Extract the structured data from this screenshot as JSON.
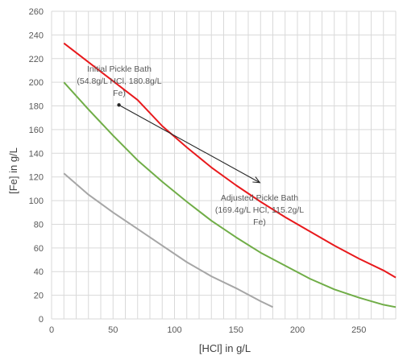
{
  "chart_data": {
    "type": "line",
    "title": "",
    "xlabel": "[HCl] in g/L",
    "ylabel": "[Fe] in g/L",
    "xlim": [
      0,
      280
    ],
    "ylim": [
      0,
      260
    ],
    "xticks": [
      0,
      50,
      100,
      150,
      200,
      250
    ],
    "yticks": [
      0,
      20,
      40,
      60,
      80,
      100,
      120,
      140,
      160,
      180,
      200,
      220,
      240,
      260
    ],
    "grid": true,
    "legend": "none",
    "series": [
      {
        "color": "#e8191c",
        "points": [
          [
            10,
            233
          ],
          [
            30,
            217
          ],
          [
            50,
            201
          ],
          [
            70,
            185
          ],
          [
            90,
            163
          ],
          [
            110,
            145
          ],
          [
            130,
            128
          ],
          [
            150,
            113
          ],
          [
            170,
            99
          ],
          [
            190,
            86
          ],
          [
            210,
            74
          ],
          [
            230,
            62
          ],
          [
            250,
            51
          ],
          [
            270,
            41
          ],
          [
            280,
            35
          ]
        ]
      },
      {
        "color": "#70ad47",
        "points": [
          [
            10,
            200
          ],
          [
            30,
            177
          ],
          [
            50,
            155
          ],
          [
            70,
            134
          ],
          [
            90,
            116
          ],
          [
            110,
            99
          ],
          [
            130,
            83
          ],
          [
            150,
            69
          ],
          [
            170,
            56
          ],
          [
            190,
            45
          ],
          [
            210,
            34
          ],
          [
            230,
            25
          ],
          [
            250,
            18
          ],
          [
            270,
            12
          ],
          [
            280,
            10
          ]
        ]
      },
      {
        "color": "#a6a6a6",
        "points": [
          [
            10,
            123
          ],
          [
            30,
            105
          ],
          [
            50,
            90
          ],
          [
            70,
            76
          ],
          [
            90,
            62
          ],
          [
            110,
            48
          ],
          [
            130,
            36
          ],
          [
            150,
            26
          ],
          [
            170,
            15
          ],
          [
            180,
            10
          ]
        ]
      }
    ],
    "annotations": [
      {
        "text_lines": [
          "Initial Pickle Bath",
          "(54.8g/L HCl, 180.8g/L",
          "Fe)"
        ],
        "x": 54.8,
        "y": 180.8
      },
      {
        "text_lines": [
          "Adjusted Pickle Bath",
          "(169.4g/L HCl, 115.2g/L",
          "Fe)"
        ],
        "x": 169.4,
        "y": 115.2
      }
    ],
    "arrow": {
      "from": [
        54.8,
        180.8
      ],
      "to": [
        169.4,
        115.2
      ],
      "color": "#262626"
    }
  }
}
